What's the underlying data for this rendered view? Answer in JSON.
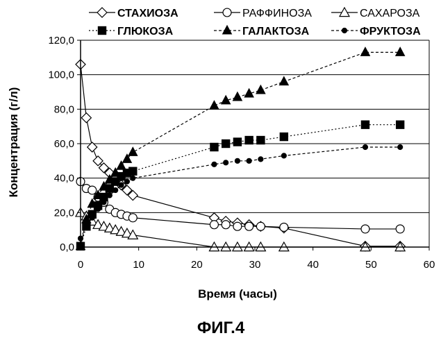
{
  "chart_data": {
    "type": "line",
    "title": "",
    "xlabel": "Время (часы)",
    "ylabel": "Концентрация (г/л)",
    "xlim": [
      0,
      60
    ],
    "ylim": [
      0,
      120
    ],
    "x_ticks": [
      "0",
      "10",
      "20",
      "30",
      "40",
      "50",
      "60"
    ],
    "y_ticks": [
      "0,0",
      "20,0",
      "40,0",
      "60,0",
      "80,0",
      "100,0",
      "120,0"
    ],
    "grid": "horizontal",
    "legend_position": "top",
    "caption": "ФИГ.4",
    "series": [
      {
        "name": "СТАХИОЗА",
        "marker": "diamond-open",
        "line": "solid",
        "color": "#000000",
        "x": [
          0,
          1,
          2,
          3,
          4,
          5,
          6,
          7,
          8,
          9,
          23,
          25,
          27,
          29,
          31,
          35,
          49,
          55
        ],
        "y": [
          106,
          75,
          58,
          50,
          46,
          43,
          40,
          36,
          33,
          30,
          17,
          15,
          14,
          13,
          12,
          11,
          0.5,
          0.5
        ]
      },
      {
        "name": "РАФФИНОЗА",
        "marker": "circle-open",
        "line": "solid",
        "color": "#000000",
        "x": [
          0,
          1,
          2,
          3,
          4,
          5,
          6,
          7,
          8,
          9,
          23,
          25,
          27,
          29,
          31,
          35,
          49,
          55
        ],
        "y": [
          38,
          34,
          33,
          29,
          26,
          22,
          20,
          19,
          18,
          17,
          13,
          13,
          12,
          12,
          12,
          11.5,
          10.5,
          10.5
        ]
      },
      {
        "name": "САХАРОЗА",
        "marker": "triangle-open",
        "line": "solid",
        "color": "#000000",
        "x": [
          0,
          1,
          2,
          3,
          4,
          5,
          6,
          7,
          8,
          9,
          23,
          25,
          27,
          29,
          31,
          35,
          49,
          55
        ],
        "y": [
          20,
          18,
          15,
          13,
          12,
          11,
          10,
          9,
          8,
          7,
          0,
          0,
          0,
          0,
          0,
          0,
          0,
          0
        ]
      },
      {
        "name": "ГЛЮКОЗА",
        "marker": "square-filled",
        "line": "dotted",
        "color": "#000000",
        "x": [
          0,
          1,
          2,
          3,
          4,
          5,
          6,
          7,
          8,
          9,
          23,
          25,
          27,
          29,
          31,
          35,
          49,
          55
        ],
        "y": [
          0.5,
          12,
          19,
          24,
          29,
          34,
          38,
          41,
          43,
          44,
          58,
          60,
          61,
          62,
          62,
          64,
          71,
          71
        ]
      },
      {
        "name": "ГАЛАКТОЗА",
        "marker": "triangle-filled",
        "line": "dashed",
        "color": "#000000",
        "x": [
          0,
          1,
          2,
          3,
          4,
          5,
          6,
          7,
          8,
          9,
          23,
          25,
          27,
          29,
          31,
          35,
          49,
          55
        ],
        "y": [
          0.5,
          16,
          25,
          30,
          35,
          39,
          43,
          47,
          51,
          55,
          82,
          85,
          87,
          89,
          91,
          96,
          113,
          113
        ]
      },
      {
        "name": "ФРУКТОЗА",
        "marker": "circle-filled",
        "line": "dashed",
        "color": "#000000",
        "x": [
          0,
          1,
          2,
          3,
          4,
          5,
          6,
          7,
          8,
          9,
          23,
          25,
          27,
          29,
          31,
          35,
          49,
          55
        ],
        "y": [
          5,
          12,
          17,
          22,
          26,
          30,
          33,
          36,
          38,
          40,
          48,
          49,
          50,
          50,
          51,
          53,
          58,
          58
        ]
      }
    ]
  }
}
